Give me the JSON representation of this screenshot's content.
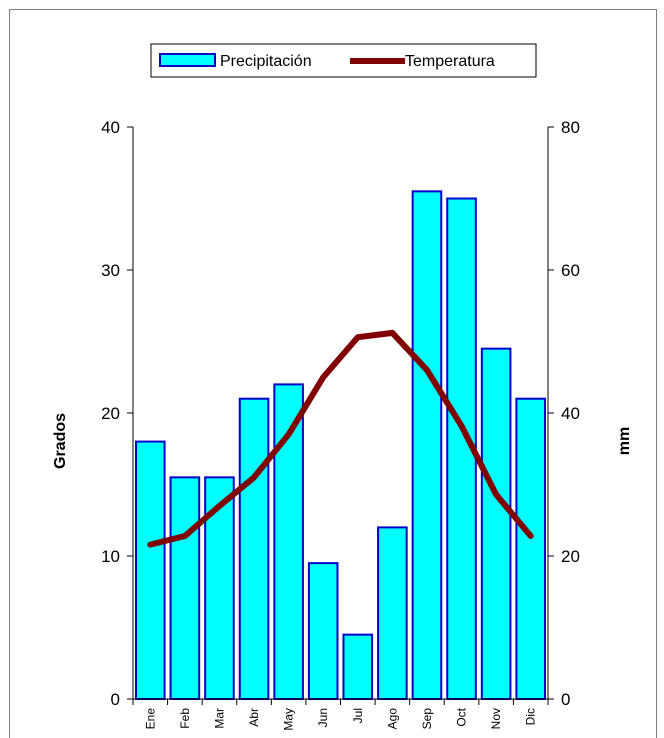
{
  "chart_data": {
    "type": "bar-line",
    "categories": [
      "Ene",
      "Feb",
      "Mar",
      "Abr",
      "May",
      "Jun",
      "Jul",
      "Ago",
      "Sep",
      "Oct",
      "Nov",
      "Dic"
    ],
    "series": [
      {
        "name": "Precipitación",
        "type": "bar",
        "axis": "right",
        "values": [
          36,
          31,
          31,
          42,
          44,
          19,
          9,
          24,
          71,
          70,
          49,
          42
        ]
      },
      {
        "name": "Temperatura",
        "type": "line",
        "axis": "left",
        "values": [
          10.8,
          11.4,
          13.5,
          15.5,
          18.5,
          22.5,
          25.3,
          25.6,
          23.0,
          19.1,
          14.3,
          11.4
        ]
      }
    ],
    "left_axis": {
      "label": "Grados",
      "range": [
        0,
        40
      ],
      "ticks": [
        0,
        10,
        20,
        30,
        40
      ]
    },
    "right_axis": {
      "label": "mm",
      "range": [
        0,
        80
      ],
      "ticks": [
        0,
        20,
        40,
        60,
        80
      ]
    },
    "legend_position": "top-center",
    "grid": false,
    "colors": {
      "bar_fill": "#00ffff",
      "bar_stroke": "#0000cc",
      "line": "#800000"
    }
  }
}
